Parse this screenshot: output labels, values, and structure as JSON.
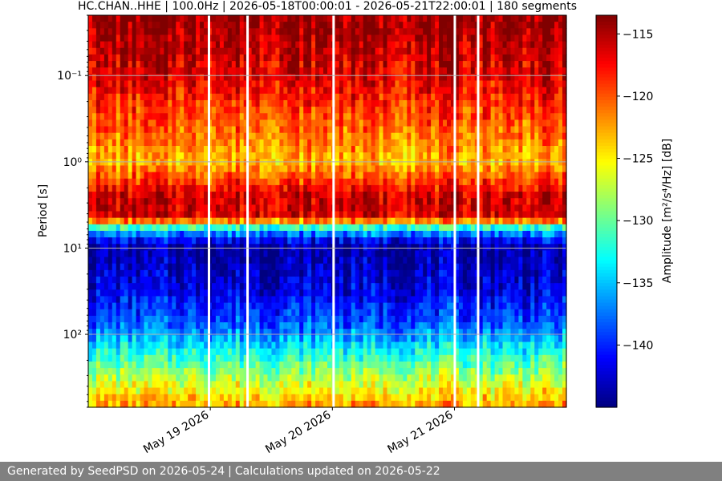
{
  "chart_data": {
    "type": "heatmap",
    "title": "HC.CHAN..HHE | 100.0Hz | 2026-05-18T00:00:01 - 2026-05-21T22:00:01 | 180 segments",
    "ylabel": "Period [s]",
    "colorbar_label": "Amplitude [m²/s⁴/Hz] [dB]",
    "y_scale": "log",
    "y_inverted": true,
    "ylim": [
      0.02,
      700
    ],
    "y_ticks": [
      {
        "value": 0.1,
        "label": "10⁻¹"
      },
      {
        "value": 1,
        "label": "10⁰"
      },
      {
        "value": 10,
        "label": "10¹"
      },
      {
        "value": 100,
        "label": "10²"
      }
    ],
    "x_ticks": [
      {
        "value": "2026-05-19",
        "label": "May 19 2026"
      },
      {
        "value": "2026-05-20",
        "label": "May 20 2026"
      },
      {
        "value": "2026-05-21",
        "label": "May 21 2026"
      }
    ],
    "xlim": [
      "2026-05-18T00:00:01",
      "2026-05-21T22:00:01"
    ],
    "colorbar_range": [
      -145,
      -113.5
    ],
    "colorbar_ticks": [
      -115,
      -120,
      -125,
      -130,
      -135,
      -140
    ],
    "colormap": "jet",
    "grid": true,
    "data_gaps": [
      {
        "start": "2026-05-18T23:30",
        "end": "2026-05-18T23:50"
      },
      {
        "start": "2026-05-19T07:05",
        "end": "2026-05-19T07:25"
      },
      {
        "start": "2026-05-20T00:00",
        "end": "2026-05-20T00:20"
      },
      {
        "start": "2026-05-20T23:50",
        "end": "2026-05-21T00:10"
      },
      {
        "start": "2026-05-21T04:25",
        "end": "2026-05-21T04:45"
      }
    ],
    "profile": [
      {
        "period": 0.02,
        "amplitude": -114.0
      },
      {
        "period": 0.1,
        "amplitude": -116.5
      },
      {
        "period": 0.5,
        "amplitude": -121.0
      },
      {
        "period": 1.0,
        "amplitude": -123.0
      },
      {
        "period": 2.5,
        "amplitude": -116.0
      },
      {
        "period": 4.5,
        "amplitude": -116.0
      },
      {
        "period": 5.5,
        "amplitude": -130.0
      },
      {
        "period": 7.5,
        "amplitude": -140.0
      },
      {
        "period": 10,
        "amplitude": -144.0
      },
      {
        "period": 30,
        "amplitude": -142.0
      },
      {
        "period": 80,
        "amplitude": -138.0
      },
      {
        "period": 200,
        "amplitude": -131.0
      },
      {
        "period": 350,
        "amplitude": -127.0
      },
      {
        "period": 700,
        "amplitude": -122.0
      }
    ]
  },
  "footer": {
    "generated": "Generated by SeedPSD on 2026-05-24",
    "separator": "|",
    "updated": "Calculations updated on 2026-05-22"
  }
}
